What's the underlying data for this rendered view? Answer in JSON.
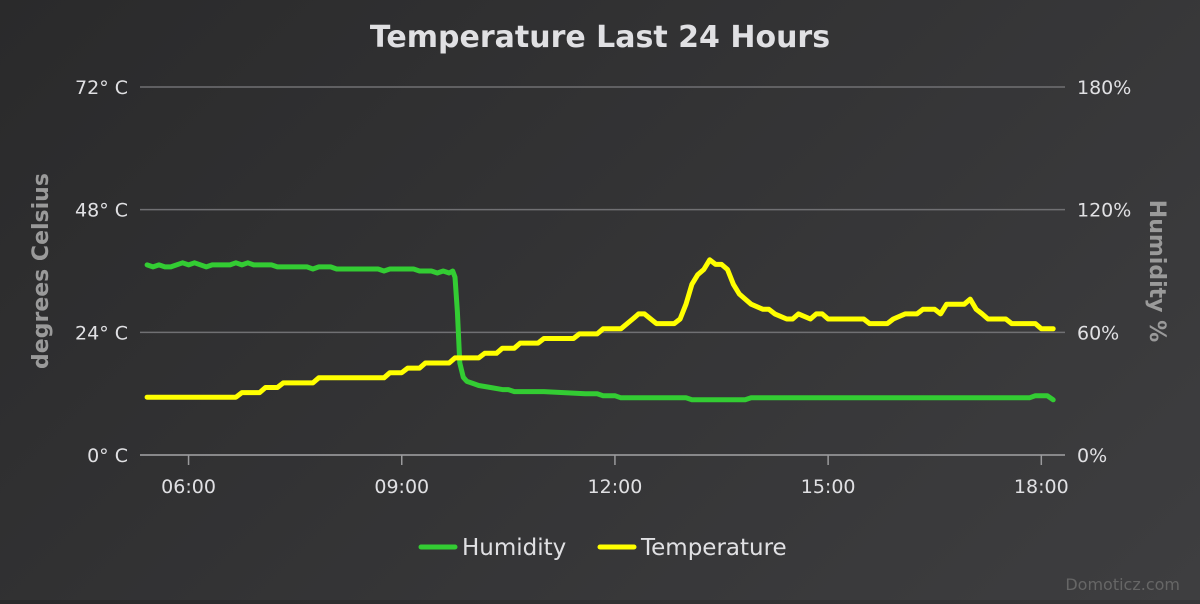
{
  "chart_data": {
    "type": "line",
    "title": "Temperature Last 24 Hours",
    "y_left": {
      "label": "degrees Celsius",
      "range": [
        0,
        72
      ],
      "ticks": [
        0,
        24,
        48,
        72
      ],
      "tick_labels": [
        "0° C",
        "24° C",
        "48° C",
        "72° C"
      ]
    },
    "y_right": {
      "label": "Humidity %",
      "range": [
        0,
        180
      ],
      "ticks": [
        0,
        60,
        120,
        180
      ],
      "tick_labels": [
        "0%",
        "60%",
        "120%",
        "180%"
      ]
    },
    "x_axis": {
      "range": [
        "05:19",
        "18:20"
      ],
      "ticks": [
        "06:00",
        "09:00",
        "12:00",
        "15:00",
        "18:00"
      ]
    },
    "grid": true,
    "legend_placement": "bottom-center",
    "series": [
      {
        "name": "Humidity",
        "color": "#33cc33",
        "axis": "right",
        "points": [
          [
            "05:25",
            93
          ],
          [
            "05:30",
            92
          ],
          [
            "05:35",
            93
          ],
          [
            "05:40",
            92
          ],
          [
            "05:45",
            92
          ],
          [
            "05:55",
            94
          ],
          [
            "06:00",
            93
          ],
          [
            "06:05",
            94
          ],
          [
            "06:15",
            92
          ],
          [
            "06:20",
            93
          ],
          [
            "06:35",
            93
          ],
          [
            "06:40",
            94
          ],
          [
            "06:45",
            93
          ],
          [
            "06:50",
            94
          ],
          [
            "06:55",
            93
          ],
          [
            "07:10",
            93
          ],
          [
            "07:15",
            92
          ],
          [
            "07:40",
            92
          ],
          [
            "07:45",
            91
          ],
          [
            "07:50",
            92
          ],
          [
            "08:00",
            92
          ],
          [
            "08:05",
            91
          ],
          [
            "08:40",
            91
          ],
          [
            "08:45",
            90
          ],
          [
            "08:50",
            91
          ],
          [
            "09:10",
            91
          ],
          [
            "09:15",
            90
          ],
          [
            "09:25",
            90
          ],
          [
            "09:30",
            89
          ],
          [
            "09:35",
            90
          ],
          [
            "09:40",
            89
          ],
          [
            "09:43",
            90
          ],
          [
            "09:45",
            87
          ],
          [
            "09:47",
            70
          ],
          [
            "09:49",
            45
          ],
          [
            "09:52",
            38
          ],
          [
            "09:55",
            36
          ],
          [
            "10:00",
            35
          ],
          [
            "10:05",
            34
          ],
          [
            "10:15",
            33
          ],
          [
            "10:25",
            32
          ],
          [
            "10:30",
            32
          ],
          [
            "10:35",
            31
          ],
          [
            "10:40",
            31
          ],
          [
            "11:00",
            31
          ],
          [
            "11:35",
            30
          ],
          [
            "11:45",
            30
          ],
          [
            "11:50",
            29
          ],
          [
            "12:00",
            29
          ],
          [
            "12:05",
            28
          ],
          [
            "12:15",
            28
          ],
          [
            "13:00",
            28
          ],
          [
            "13:05",
            27
          ],
          [
            "13:50",
            27
          ],
          [
            "13:55",
            28
          ],
          [
            "15:00",
            28
          ],
          [
            "16:00",
            28
          ],
          [
            "17:00",
            28
          ],
          [
            "17:50",
            28
          ],
          [
            "17:55",
            29
          ],
          [
            "18:05",
            29
          ],
          [
            "18:10",
            27
          ]
        ]
      },
      {
        "name": "Temperature",
        "color": "#ffff00",
        "axis": "left",
        "points": [
          [
            "05:25",
            11.3
          ],
          [
            "06:00",
            11.3
          ],
          [
            "06:30",
            11.3
          ],
          [
            "06:40",
            11.3
          ],
          [
            "06:45",
            12.2
          ],
          [
            "07:00",
            12.2
          ],
          [
            "07:05",
            13.2
          ],
          [
            "07:15",
            13.2
          ],
          [
            "07:20",
            14.1
          ],
          [
            "07:45",
            14.1
          ],
          [
            "07:50",
            15.1
          ],
          [
            "08:20",
            15.1
          ],
          [
            "08:45",
            15.1
          ],
          [
            "08:50",
            16.1
          ],
          [
            "09:00",
            16.1
          ],
          [
            "09:05",
            17.0
          ],
          [
            "09:15",
            17.0
          ],
          [
            "09:20",
            18.0
          ],
          [
            "09:40",
            18.0
          ],
          [
            "09:45",
            19.0
          ],
          [
            "10:05",
            19.0
          ],
          [
            "10:10",
            19.9
          ],
          [
            "10:20",
            19.9
          ],
          [
            "10:25",
            20.9
          ],
          [
            "10:35",
            20.9
          ],
          [
            "10:40",
            21.9
          ],
          [
            "10:55",
            21.9
          ],
          [
            "11:00",
            22.8
          ],
          [
            "11:25",
            22.8
          ],
          [
            "11:30",
            23.7
          ],
          [
            "11:45",
            23.7
          ],
          [
            "11:50",
            24.7
          ],
          [
            "12:05",
            24.7
          ],
          [
            "12:15",
            26.6
          ],
          [
            "12:20",
            27.6
          ],
          [
            "12:25",
            27.6
          ],
          [
            "12:35",
            25.7
          ],
          [
            "12:50",
            25.7
          ],
          [
            "12:55",
            26.6
          ],
          [
            "13:00",
            29.5
          ],
          [
            "13:05",
            33.4
          ],
          [
            "13:10",
            35.3
          ],
          [
            "13:15",
            36.3
          ],
          [
            "13:20",
            38.2
          ],
          [
            "13:25",
            37.3
          ],
          [
            "13:30",
            37.3
          ],
          [
            "13:35",
            36.3
          ],
          [
            "13:40",
            33.4
          ],
          [
            "13:45",
            31.5
          ],
          [
            "13:50",
            30.5
          ],
          [
            "13:55",
            29.5
          ],
          [
            "14:05",
            28.5
          ],
          [
            "14:10",
            28.5
          ],
          [
            "14:15",
            27.6
          ],
          [
            "14:25",
            26.6
          ],
          [
            "14:30",
            26.6
          ],
          [
            "14:35",
            27.6
          ],
          [
            "14:45",
            26.6
          ],
          [
            "14:50",
            27.6
          ],
          [
            "14:55",
            27.6
          ],
          [
            "15:00",
            26.6
          ],
          [
            "15:30",
            26.6
          ],
          [
            "15:35",
            25.7
          ],
          [
            "15:50",
            25.7
          ],
          [
            "15:55",
            26.6
          ],
          [
            "16:05",
            27.6
          ],
          [
            "16:15",
            27.6
          ],
          [
            "16:20",
            28.5
          ],
          [
            "16:30",
            28.5
          ],
          [
            "16:35",
            27.6
          ],
          [
            "16:40",
            29.5
          ],
          [
            "16:55",
            29.5
          ],
          [
            "17:00",
            30.5
          ],
          [
            "17:05",
            28.5
          ],
          [
            "17:10",
            27.6
          ],
          [
            "17:15",
            26.6
          ],
          [
            "17:30",
            26.6
          ],
          [
            "17:35",
            25.7
          ],
          [
            "17:55",
            25.7
          ],
          [
            "18:00",
            24.7
          ],
          [
            "18:05",
            24.7
          ],
          [
            "18:10",
            24.7
          ]
        ]
      }
    ]
  },
  "credits": "Domoticz.com"
}
